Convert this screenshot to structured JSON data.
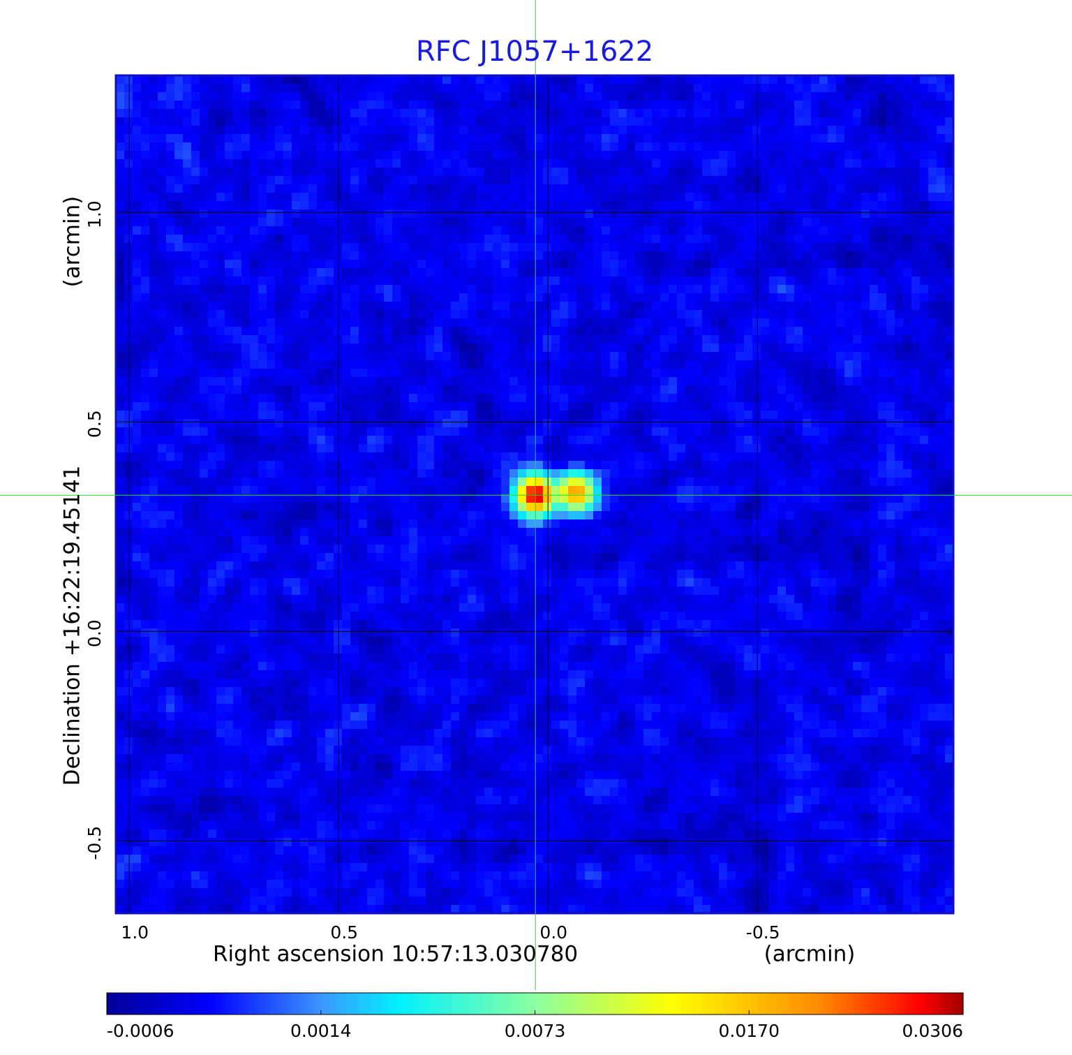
{
  "chart_data": {
    "type": "image",
    "title": "RFC J1057+1622",
    "x_label": "Right ascension  10:57:13.030780",
    "x_unit": "(arcmin)",
    "y_label": "Declination  +16:22:19.45141",
    "y_unit": "(arcmin)",
    "xlim": [
      1.032,
      -0.968
    ],
    "ylim": [
      -0.673,
      1.327
    ],
    "xticks": [
      {
        "value": 1.0,
        "label": "1.0"
      },
      0.5,
      {
        "value": 0.0,
        "label": "0.0"
      },
      -0.5
    ],
    "yticks": [
      -0.5,
      {
        "value": 0.0,
        "label": "0.0"
      },
      0.5,
      {
        "value": 1.0,
        "label": "1.0"
      }
    ],
    "grid": true,
    "crosshair": {
      "x": 0.03,
      "y": 0.325
    },
    "sources": [
      {
        "x": 0.03,
        "y": 0.325,
        "peak": 0.0306
      },
      {
        "x": -0.067,
        "y": 0.332,
        "peak": 0.02
      }
    ],
    "colorbar_ticks": [
      -0.0006,
      0.0014,
      0.0073,
      {
        "value": 0.017,
        "label": "0.0170"
      },
      0.0306
    ]
  }
}
